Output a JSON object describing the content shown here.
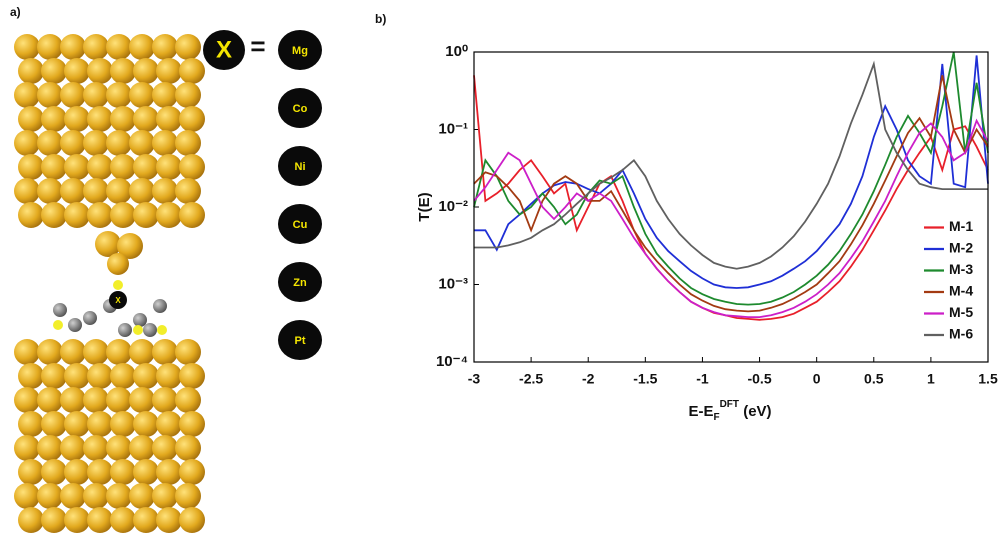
{
  "panel_a": {
    "label": "a)",
    "x_symbol": "X",
    "equals": "=",
    "metals": [
      "Mg",
      "Co",
      "Ni",
      "Cu",
      "Zn",
      "Pt"
    ]
  },
  "panel_b_label": "b)",
  "chart_data": {
    "type": "line",
    "log_scale": true,
    "legend": "lower right",
    "xlabel_parts": [
      "E-E",
      "F",
      "DFT",
      " (eV)"
    ],
    "ylabel": "T(E)",
    "xlim": [
      -3,
      1.5
    ],
    "xticks": [
      -3,
      -2.5,
      -2,
      -1.5,
      -1,
      -0.5,
      0,
      0.5,
      1,
      1.5
    ],
    "ylim": [
      0.0001,
      1
    ],
    "yticks": [
      {
        "value": 0.0001,
        "label": "10⁻⁴"
      },
      {
        "value": 0.001,
        "label": "10⁻³"
      },
      {
        "value": 0.01,
        "label": "10⁻²"
      },
      {
        "value": 0.1,
        "label": "10⁻¹"
      },
      {
        "value": 1,
        "label": "10⁰"
      }
    ],
    "x": [
      -3.0,
      -2.9,
      -2.8,
      -2.7,
      -2.6,
      -2.5,
      -2.4,
      -2.3,
      -2.2,
      -2.1,
      -2.0,
      -1.9,
      -1.8,
      -1.7,
      -1.6,
      -1.5,
      -1.4,
      -1.3,
      -1.2,
      -1.1,
      -1.0,
      -0.9,
      -0.8,
      -0.7,
      -0.6,
      -0.5,
      -0.4,
      -0.3,
      -0.2,
      -0.1,
      0,
      0.1,
      0.2,
      0.3,
      0.4,
      0.5,
      0.6,
      0.7,
      0.8,
      0.9,
      1.0,
      1.1,
      1.2,
      1.3,
      1.4,
      1.5
    ],
    "series": [
      {
        "name": "M-1",
        "color": "#e8202a",
        "values": [
          0.5,
          0.012,
          0.015,
          0.02,
          0.03,
          0.04,
          0.025,
          0.015,
          0.02,
          0.005,
          0.01,
          0.02,
          0.025,
          0.012,
          0.005,
          0.0025,
          0.0016,
          0.0011,
          0.0008,
          0.0006,
          0.0005,
          0.00043,
          0.0004,
          0.00037,
          0.00036,
          0.00035,
          0.00036,
          0.00038,
          0.00042,
          0.0005,
          0.0006,
          0.0008,
          0.0011,
          0.0017,
          0.0028,
          0.005,
          0.009,
          0.017,
          0.03,
          0.05,
          0.08,
          0.03,
          0.1,
          0.11,
          0.06,
          0.03
        ]
      },
      {
        "name": "M-2",
        "color": "#1f2fd6",
        "values": [
          0.005,
          0.005,
          0.0028,
          0.006,
          0.008,
          0.011,
          0.015,
          0.019,
          0.021,
          0.02,
          0.017,
          0.015,
          0.02,
          0.03,
          0.015,
          0.007,
          0.004,
          0.0027,
          0.002,
          0.0015,
          0.0012,
          0.001,
          0.00092,
          0.0009,
          0.00092,
          0.001,
          0.0011,
          0.0013,
          0.0016,
          0.002,
          0.0027,
          0.004,
          0.006,
          0.011,
          0.025,
          0.08,
          0.2,
          0.1,
          0.04,
          0.025,
          0.02,
          0.7,
          0.02,
          0.018,
          0.9,
          0.02
        ]
      },
      {
        "name": "M-3",
        "color": "#1e8a2e",
        "values": [
          0.01,
          0.04,
          0.025,
          0.012,
          0.008,
          0.01,
          0.015,
          0.01,
          0.006,
          0.008,
          0.015,
          0.022,
          0.02,
          0.025,
          0.01,
          0.0045,
          0.0025,
          0.0017,
          0.0012,
          0.0009,
          0.00075,
          0.00065,
          0.0006,
          0.00056,
          0.00055,
          0.00056,
          0.0006,
          0.00068,
          0.0008,
          0.001,
          0.0013,
          0.0018,
          0.0027,
          0.0045,
          0.008,
          0.016,
          0.035,
          0.08,
          0.15,
          0.09,
          0.05,
          0.2,
          1.0,
          0.05,
          0.4,
          0.05
        ]
      },
      {
        "name": "M-4",
        "color": "#a33a12",
        "values": [
          0.02,
          0.028,
          0.025,
          0.018,
          0.012,
          0.005,
          0.012,
          0.02,
          0.025,
          0.02,
          0.012,
          0.012,
          0.016,
          0.009,
          0.005,
          0.003,
          0.002,
          0.0014,
          0.001,
          0.00075,
          0.00062,
          0.00053,
          0.00048,
          0.00046,
          0.00045,
          0.00046,
          0.0005,
          0.00056,
          0.00066,
          0.0008,
          0.001,
          0.0014,
          0.002,
          0.0033,
          0.0058,
          0.011,
          0.022,
          0.045,
          0.09,
          0.14,
          0.08,
          0.5,
          0.1,
          0.05,
          0.1,
          0.06
        ]
      },
      {
        "name": "M-5",
        "color": "#cc1fc8",
        "values": [
          0.012,
          0.018,
          0.03,
          0.05,
          0.04,
          0.02,
          0.01,
          0.007,
          0.01,
          0.015,
          0.012,
          0.015,
          0.012,
          0.007,
          0.004,
          0.0025,
          0.0016,
          0.0011,
          0.0008,
          0.0006,
          0.0005,
          0.00044,
          0.0004,
          0.00039,
          0.00038,
          0.00038,
          0.0004,
          0.00044,
          0.0005,
          0.0006,
          0.00075,
          0.001,
          0.0014,
          0.0022,
          0.0036,
          0.0065,
          0.012,
          0.025,
          0.05,
          0.09,
          0.12,
          0.08,
          0.04,
          0.05,
          0.13,
          0.07
        ]
      },
      {
        "name": "M-6",
        "color": "#606060",
        "values": [
          0.003,
          0.003,
          0.003,
          0.0032,
          0.0035,
          0.004,
          0.005,
          0.006,
          0.008,
          0.011,
          0.015,
          0.02,
          0.024,
          0.03,
          0.04,
          0.025,
          0.012,
          0.007,
          0.0045,
          0.0032,
          0.0024,
          0.0019,
          0.0017,
          0.0016,
          0.0017,
          0.0019,
          0.0023,
          0.003,
          0.0042,
          0.0065,
          0.011,
          0.02,
          0.045,
          0.12,
          0.28,
          0.7,
          0.1,
          0.05,
          0.03,
          0.02,
          0.018,
          0.017,
          0.017,
          0.017,
          0.017,
          0.017
        ]
      }
    ]
  }
}
